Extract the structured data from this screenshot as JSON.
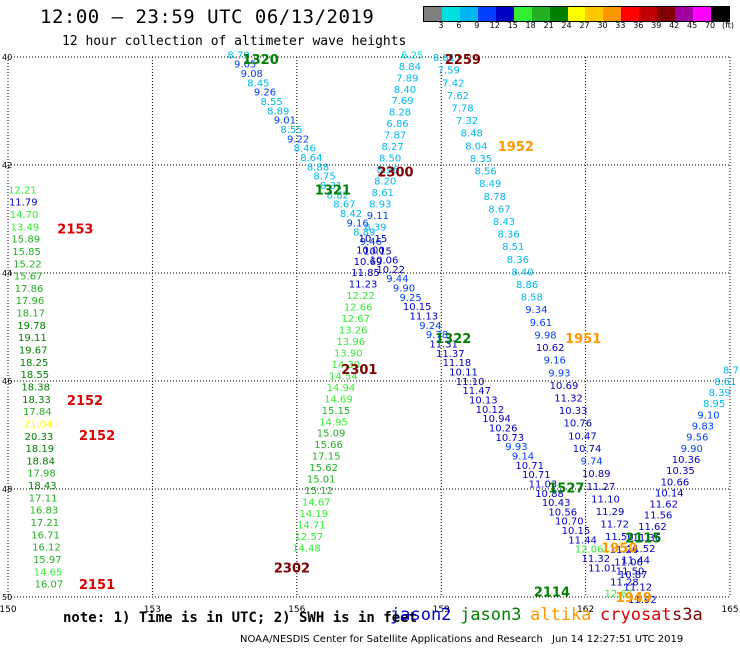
{
  "header": {
    "title": "12:00 – 23:59 UTC 06/13/2019",
    "subtitle": "12 hour collection of altimeter wave heights"
  },
  "legend": {
    "unit": "(ft)",
    "colors": [
      "#808080",
      "#00e0e0",
      "#00b8f0",
      "#0040ff",
      "#0000c0",
      "#33ee33",
      "#22b022",
      "#008000",
      "#ffff00",
      "#ffc800",
      "#ff9600",
      "#ff0000",
      "#c00000",
      "#800000",
      "#a000a0",
      "#ff00ff",
      "#000000"
    ],
    "labels": [
      "3",
      "6",
      "9",
      "12",
      "15",
      "18",
      "21",
      "24",
      "27",
      "30",
      "33",
      "36",
      "39",
      "42",
      "45",
      "70"
    ]
  },
  "note": "note: 1) Time is in UTC; 2) SWH is in feet",
  "satellites": [
    {
      "name": "jason2",
      "color": "#0000cc"
    },
    {
      "name": "jason3",
      "color": "#008000"
    },
    {
      "name": "altika",
      "color": "#ff9900"
    },
    {
      "name": "cryosat",
      "color": "#dd0000"
    },
    {
      "name": "s3a",
      "color": "#800000"
    }
  ],
  "footer": {
    "left": "NOAA/NESDIS Center for Satellite Applications and Research",
    "right": "Jun 14 12:27:51 UTC 2019"
  },
  "chart_data": {
    "type": "scatter",
    "title": "12:00 – 23:59 UTC 06/13/2019",
    "xlim": [
      150,
      165
    ],
    "ylim": [
      40,
      50
    ],
    "y_inverted": true,
    "x_ticks": [
      "150",
      "153",
      "156",
      "159",
      "162",
      "165"
    ],
    "y_ticks": [
      "40",
      "42",
      "44",
      "46",
      "48",
      "50"
    ],
    "grid": true,
    "tracks": [
      {
        "name": "track1",
        "x0": 154.79,
        "y0": 39.97,
        "x1": 162.35,
        "y1": 49.47,
        "labels": [
          [
            "8.79",
            "#00b8f0"
          ],
          [
            "9.05",
            "#0040ff"
          ],
          [
            "9.08",
            "#0040ff"
          ],
          [
            "8.45",
            "#00b8f0"
          ],
          [
            "9.26",
            "#0040ff"
          ],
          [
            "8.55",
            "#00b8f0"
          ],
          [
            "8.89",
            "#00b8f0"
          ],
          [
            "9.01",
            "#0040ff"
          ],
          [
            "8.55",
            "#00b8f0"
          ],
          [
            "9.22",
            "#0040ff"
          ],
          [
            "8.46",
            "#00b8f0"
          ],
          [
            "8.64",
            "#00b8f0"
          ],
          [
            "8.88",
            "#00b8f0"
          ],
          [
            "8.75",
            "#00b8f0"
          ],
          [
            "8.31",
            "#00b8f0"
          ],
          [
            "8.82",
            "#00b8f0"
          ],
          [
            "8.67",
            "#00b8f0"
          ],
          [
            "8.42",
            "#00b8f0"
          ],
          [
            "9.16",
            "#0040ff"
          ],
          [
            "8.89",
            "#00b8f0"
          ],
          [
            "9.46",
            "#0040ff"
          ],
          [
            "10.15",
            "#0000c0"
          ],
          [
            "10.06",
            "#0000c0"
          ],
          [
            "10.22",
            "#0000c0"
          ],
          [
            "9.44",
            "#0040ff"
          ],
          [
            "9.90",
            "#0040ff"
          ],
          [
            "9.25",
            "#0040ff"
          ],
          [
            "10.15",
            "#0000c0"
          ],
          [
            "11.13",
            "#0000c0"
          ],
          [
            "9.24",
            "#0040ff"
          ],
          [
            "9.78",
            "#0040ff"
          ],
          [
            "11.31",
            "#0000c0"
          ],
          [
            "11.37",
            "#0000c0"
          ],
          [
            "11.18",
            "#0000c0"
          ],
          [
            "10.11",
            "#0000c0"
          ],
          [
            "11.10",
            "#0000c0"
          ],
          [
            "11.47",
            "#0000c0"
          ],
          [
            "10.13",
            "#0000c0"
          ],
          [
            "10.12",
            "#0000c0"
          ],
          [
            "10.94",
            "#0000c0"
          ],
          [
            "10.26",
            "#0000c0"
          ],
          [
            "10.73",
            "#0000c0"
          ],
          [
            "9.93",
            "#0040ff"
          ],
          [
            "9.14",
            "#0040ff"
          ],
          [
            "10.71",
            "#0000c0"
          ],
          [
            "10.71",
            "#0000c0"
          ],
          [
            "11.03",
            "#0000c0"
          ],
          [
            "10.88",
            "#0000c0"
          ],
          [
            "10.43",
            "#0000c0"
          ],
          [
            "10.56",
            "#0000c0"
          ],
          [
            "10.70",
            "#0000c0"
          ],
          [
            "10.15",
            "#0000c0"
          ],
          [
            "11.44",
            "#0000c0"
          ],
          [
            "12.06",
            "#33ee33"
          ],
          [
            "11.32",
            "#0000c0"
          ],
          [
            "11.01",
            "#0000c0"
          ]
        ]
      },
      {
        "name": "track2",
        "x0": 158.4,
        "y0": 39.97,
        "x1": 156.2,
        "y1": 49.1,
        "labels": [
          [
            "6.25",
            "#00e0e0"
          ],
          [
            "8.84",
            "#00b8f0"
          ],
          [
            "7.89",
            "#00b8f0"
          ],
          [
            "8.40",
            "#00b8f0"
          ],
          [
            "7.69",
            "#00b8f0"
          ],
          [
            "8.28",
            "#00b8f0"
          ],
          [
            "6.86",
            "#00b8f0"
          ],
          [
            "7.87",
            "#00b8f0"
          ],
          [
            "8.27",
            "#00b8f0"
          ],
          [
            "8.50",
            "#00b8f0"
          ],
          [
            "8.96",
            "#00b8f0"
          ],
          [
            "8.20",
            "#00b8f0"
          ],
          [
            "8.61",
            "#00b8f0"
          ],
          [
            "8.93",
            "#00b8f0"
          ],
          [
            "9.11",
            "#0040ff"
          ],
          [
            "8.39",
            "#00b8f0"
          ],
          [
            "10.15",
            "#0000c0"
          ],
          [
            "10.00",
            "#0000c0"
          ],
          [
            "10.69",
            "#0000c0"
          ],
          [
            "11.85",
            "#0000c0"
          ],
          [
            "11.23",
            "#0000c0"
          ],
          [
            "12.22",
            "#33ee33"
          ],
          [
            "12.66",
            "#33ee33"
          ],
          [
            "12.67",
            "#33ee33"
          ],
          [
            "13.26",
            "#33ee33"
          ],
          [
            "13.96",
            "#33ee33"
          ],
          [
            "13.90",
            "#33ee33"
          ],
          [
            "14.30",
            "#33ee33"
          ],
          [
            "14.54",
            "#33ee33"
          ],
          [
            "14.94",
            "#33ee33"
          ],
          [
            "14.69",
            "#33ee33"
          ],
          [
            "15.15",
            "#22b022"
          ],
          [
            "14.95",
            "#33ee33"
          ],
          [
            "15.09",
            "#22b022"
          ],
          [
            "15.66",
            "#22b022"
          ],
          [
            "17.15",
            "#22b022"
          ],
          [
            "15.62",
            "#22b022"
          ],
          [
            "15.01",
            "#22b022"
          ],
          [
            "15.12",
            "#22b022"
          ],
          [
            "14.67",
            "#33ee33"
          ],
          [
            "14.19",
            "#33ee33"
          ],
          [
            "14.71",
            "#33ee33"
          ],
          [
            "12.57",
            "#33ee33"
          ],
          [
            "14.48",
            "#33ee33"
          ]
        ]
      },
      {
        "name": "track3",
        "x0": 159.06,
        "y0": 40.02,
        "x1": 163.18,
        "y1": 50.06,
        "labels": [
          [
            "8.81",
            "#00b8f0"
          ],
          [
            "7.59",
            "#00b8f0"
          ],
          [
            "7.42",
            "#00b8f0"
          ],
          [
            "7.62",
            "#00b8f0"
          ],
          [
            "7.78",
            "#00b8f0"
          ],
          [
            "7.32",
            "#00b8f0"
          ],
          [
            "8.48",
            "#00b8f0"
          ],
          [
            "8.04",
            "#00b8f0"
          ],
          [
            "8.35",
            "#00b8f0"
          ],
          [
            "8.56",
            "#00b8f0"
          ],
          [
            "8.49",
            "#00b8f0"
          ],
          [
            "8.78",
            "#00b8f0"
          ],
          [
            "8.67",
            "#00b8f0"
          ],
          [
            "8.43",
            "#00b8f0"
          ],
          [
            "8.36",
            "#00b8f0"
          ],
          [
            "8.51",
            "#00b8f0"
          ],
          [
            "8.36",
            "#00b8f0"
          ],
          [
            "8.40",
            "#00b8f0"
          ],
          [
            "8.86",
            "#00b8f0"
          ],
          [
            "8.58",
            "#00b8f0"
          ],
          [
            "9.34",
            "#0040ff"
          ],
          [
            "9.61",
            "#0040ff"
          ],
          [
            "9.98",
            "#0040ff"
          ],
          [
            "10.62",
            "#0000c0"
          ],
          [
            "9.16",
            "#0040ff"
          ],
          [
            "9.93",
            "#0040ff"
          ],
          [
            "10.69",
            "#0000c0"
          ],
          [
            "11.32",
            "#0000c0"
          ],
          [
            "10.33",
            "#0000c0"
          ],
          [
            "10.76",
            "#0000c0"
          ],
          [
            "10.47",
            "#0000c0"
          ],
          [
            "10.74",
            "#0000c0"
          ],
          [
            "9.74",
            "#0040ff"
          ],
          [
            "10.89",
            "#0000c0"
          ],
          [
            "11.27",
            "#0000c0"
          ],
          [
            "11.10",
            "#0000c0"
          ],
          [
            "11.29",
            "#0000c0"
          ],
          [
            "11.72",
            "#0000c0"
          ],
          [
            "11.56",
            "#0000c0"
          ],
          [
            "11.26",
            "#0000c0"
          ],
          [
            "11.06",
            "#0000c0"
          ],
          [
            "10.87",
            "#0000c0"
          ],
          [
            "11.12",
            "#0000c0"
          ],
          [
            "11.92",
            "#0000c0"
          ]
        ]
      },
      {
        "name": "track4",
        "x0": 165.02,
        "y0": 45.81,
        "x1": 162.69,
        "y1": 49.94,
        "labels": [
          [
            "8.7",
            "#00b8f0"
          ],
          [
            "8.61",
            "#00b8f0"
          ],
          [
            "8.39",
            "#00b8f0"
          ],
          [
            "8.95",
            "#00b8f0"
          ],
          [
            "9.10",
            "#0040ff"
          ],
          [
            "9.83",
            "#0040ff"
          ],
          [
            "9.56",
            "#0040ff"
          ],
          [
            "9.90",
            "#0040ff"
          ],
          [
            "10.36",
            "#0000c0"
          ],
          [
            "10.35",
            "#0000c0"
          ],
          [
            "10.66",
            "#0000c0"
          ],
          [
            "10.14",
            "#0000c0"
          ],
          [
            "11.62",
            "#0000c0"
          ],
          [
            "11.56",
            "#0000c0"
          ],
          [
            "11.62",
            "#0000c0"
          ],
          [
            "11.36",
            "#0000c0"
          ],
          [
            "11.52",
            "#0000c0"
          ],
          [
            "11.44",
            "#0000c0"
          ],
          [
            "11.50",
            "#0000c0"
          ],
          [
            "11.28",
            "#0000c0"
          ],
          [
            "12.61",
            "#33ee33"
          ]
        ]
      },
      {
        "name": "track5",
        "x0": 150.3,
        "y0": 42.47,
        "x1": 150.85,
        "y1": 49.77,
        "labels": [
          [
            "12.21",
            "#33ee33"
          ],
          [
            "11.79",
            "#0000c0"
          ],
          [
            "14.70",
            "#33ee33"
          ],
          [
            "13.49",
            "#33ee33"
          ],
          [
            "15.89",
            "#22b022"
          ],
          [
            "15.85",
            "#22b022"
          ],
          [
            "15.22",
            "#22b022"
          ],
          [
            "15.67",
            "#22b022"
          ],
          [
            "17.86",
            "#22b022"
          ],
          [
            "17.96",
            "#22b022"
          ],
          [
            "18.17",
            "#22b022"
          ],
          [
            "19.78",
            "#008000"
          ],
          [
            "19.11",
            "#008000"
          ],
          [
            "19.67",
            "#008000"
          ],
          [
            "18.25",
            "#008000"
          ],
          [
            "18.55",
            "#008000"
          ],
          [
            "18.38",
            "#008000"
          ],
          [
            "18.33",
            "#008000"
          ],
          [
            "17.84",
            "#22b022"
          ],
          [
            "21.04",
            "#ffff00"
          ],
          [
            "20.33",
            "#008000"
          ],
          [
            "18.19",
            "#008000"
          ],
          [
            "18.84",
            "#008000"
          ],
          [
            "17.98",
            "#22b022"
          ],
          [
            "18.43",
            "#008000"
          ],
          [
            "17.11",
            "#22b022"
          ],
          [
            "16.83",
            "#22b022"
          ],
          [
            "17.21",
            "#22b022"
          ],
          [
            "16.71",
            "#22b022"
          ],
          [
            "16.12",
            "#22b022"
          ],
          [
            "15.97",
            "#22b022"
          ],
          [
            "14.65",
            "#33ee33"
          ],
          [
            "16.07",
            "#22b022"
          ]
        ]
      }
    ],
    "time_annotations": [
      {
        "text": "1320",
        "x": 155.25,
        "y": 40.04,
        "color": "#008000"
      },
      {
        "text": "2259",
        "x": 159.45,
        "y": 40.04,
        "color": "#800000"
      },
      {
        "text": "1952",
        "x": 160.55,
        "y": 41.65,
        "color": "#ff9900"
      },
      {
        "text": "2300",
        "x": 158.05,
        "y": 42.12,
        "color": "#800000"
      },
      {
        "text": "1321",
        "x": 156.75,
        "y": 42.45,
        "color": "#008000"
      },
      {
        "text": "2153",
        "x": 151.4,
        "y": 43.18,
        "color": "#dd0000"
      },
      {
        "text": "1322",
        "x": 159.25,
        "y": 45.2,
        "color": "#008000"
      },
      {
        "text": "1951",
        "x": 161.95,
        "y": 45.2,
        "color": "#ff9900"
      },
      {
        "text": "2301",
        "x": 157.3,
        "y": 45.78,
        "color": "#800000"
      },
      {
        "text": "2152",
        "x": 151.6,
        "y": 46.35,
        "color": "#dd0000"
      },
      {
        "text": "2152",
        "x": 151.85,
        "y": 47.0,
        "color": "#dd0000"
      },
      {
        "text": "1527",
        "x": 161.6,
        "y": 47.97,
        "color": "#008000"
      },
      {
        "text": "2115",
        "x": 163.2,
        "y": 48.9,
        "color": "#008000"
      },
      {
        "text": "1950",
        "x": 162.7,
        "y": 49.08,
        "color": "#ff9900"
      },
      {
        "text": "2302",
        "x": 155.9,
        "y": 49.45,
        "color": "#800000"
      },
      {
        "text": "2151",
        "x": 151.85,
        "y": 49.76,
        "color": "#dd0000"
      },
      {
        "text": "2114",
        "x": 161.3,
        "y": 49.9,
        "color": "#008000"
      },
      {
        "text": "1949",
        "x": 163.0,
        "y": 50.0,
        "color": "#ff9900"
      }
    ]
  }
}
